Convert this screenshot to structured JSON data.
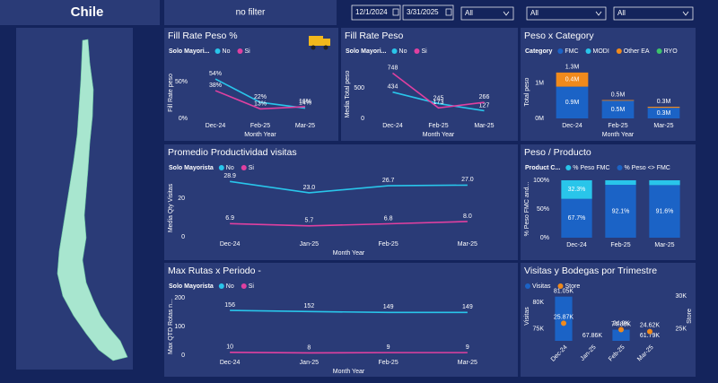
{
  "header": {
    "title": "Chile",
    "filter_text": "no filter",
    "start_date": "12/1/2024",
    "end_date": "3/31/2025",
    "dropdowns": [
      "All",
      "All",
      "All"
    ]
  },
  "chart_data": [
    {
      "type": "line",
      "title": "Fill Rate Peso %",
      "legend_title": "Solo Mayori...",
      "x_label": "Month Year",
      "y_label": "Fill Rate peso",
      "categories": [
        "Dec-24",
        "Feb-25",
        "Mar-25"
      ],
      "series": [
        {
          "name": "No",
          "color": "#29c5ea",
          "values": [
            54,
            22,
            14
          ],
          "value_labels": [
            "54%",
            "22%",
            "14%"
          ]
        },
        {
          "name": "Si",
          "color": "#e040a0",
          "values": [
            38,
            13,
            16
          ],
          "value_labels": [
            "38%",
            "13%",
            "16%"
          ]
        }
      ],
      "ylim": [
        0,
        70
      ],
      "yticks": [
        {
          "value": 0,
          "label": "0%"
        },
        {
          "value": 50,
          "label": "50%"
        }
      ]
    },
    {
      "type": "line",
      "title": "Fill Rate Peso",
      "legend_title": "Solo Mayori...",
      "x_label": "Month Year",
      "y_label": "Media Total peso",
      "categories": [
        "Dec-24",
        "Feb-25",
        "Mar-25"
      ],
      "series": [
        {
          "name": "No",
          "color": "#29c5ea",
          "values": [
            434,
            245,
            127
          ]
        },
        {
          "name": "Si",
          "color": "#e040a0",
          "values": [
            748,
            173,
            266
          ]
        }
      ],
      "ylim": [
        0,
        800
      ],
      "yticks": [
        0,
        500
      ]
    },
    {
      "type": "stacked_bar",
      "title": "Peso x Category",
      "legend_title": "Category",
      "x_label": "Month Year",
      "y_label": "Total peso",
      "categories": [
        "Dec-24",
        "Feb-25",
        "Mar-25"
      ],
      "series": [
        {
          "name": "FMC",
          "color": "#1b63c6",
          "values": [
            900000,
            500000,
            300000
          ],
          "value_labels": [
            "0.9M",
            "0.5M",
            "0.3M"
          ]
        },
        {
          "name": "MODI",
          "color": "#29c5ea",
          "values": [
            0,
            0,
            0
          ]
        },
        {
          "name": "Other EA",
          "color": "#f08a1c",
          "values": [
            400000,
            20000,
            30000
          ],
          "value_labels": [
            "0.4M",
            null,
            null
          ]
        },
        {
          "name": "RYO",
          "color": "#3cc36a",
          "values": [
            0,
            0,
            0
          ]
        }
      ],
      "total_labels": [
        "1.3M",
        "0.5M",
        "0.3M"
      ],
      "ylim": [
        0,
        1500000
      ],
      "yticks": [
        {
          "value": 0,
          "label": "0M"
        },
        {
          "value": 1000000,
          "label": "1M"
        }
      ]
    },
    {
      "type": "line",
      "title": "Promedio Productividad visitas",
      "legend_title": "Solo Mayorista",
      "x_label": "Month Year",
      "y_label": "Media Qty Visitas",
      "categories": [
        "Dec-24",
        "Jan-25",
        "Feb-25",
        "Mar-25"
      ],
      "series": [
        {
          "name": "No",
          "color": "#29c5ea",
          "values": [
            28.9,
            23.0,
            26.7,
            27.0
          ],
          "value_labels": [
            "28.9",
            "23.0",
            "26.7",
            "27.0"
          ]
        },
        {
          "name": "Si",
          "color": "#e040a0",
          "values": [
            6.9,
            5.7,
            6.8,
            8.0
          ],
          "value_labels": [
            "6.9",
            "5.7",
            "6.8",
            "8.0"
          ]
        }
      ],
      "ylim": [
        0,
        30
      ],
      "yticks": [
        0,
        20
      ]
    },
    {
      "type": "stacked_bar",
      "title": "Peso / Producto",
      "legend_title": "Product C...",
      "y_label": "% Peso FMC and...",
      "stack_reverse": true,
      "categories": [
        "Dec-24",
        "Feb-25",
        "Mar-25"
      ],
      "series": [
        {
          "name": "% Peso FMC",
          "color": "#29c5ea",
          "values": [
            32.3,
            7.9,
            8.4
          ],
          "value_labels": [
            "32.3%",
            null,
            null
          ]
        },
        {
          "name": "% Peso <> FMC",
          "color": "#1b63c6",
          "values": [
            67.7,
            92.1,
            91.6
          ],
          "value_labels": [
            "67.7%",
            "92.1%",
            "91.6%"
          ]
        }
      ],
      "ylim": [
        0,
        100
      ],
      "yticks": [
        {
          "value": 0,
          "label": "0%"
        },
        {
          "value": 50,
          "label": "50%"
        },
        {
          "value": 100,
          "label": "100%"
        }
      ]
    },
    {
      "type": "line",
      "title": "Max Rutas x Periodo -",
      "legend_title": "Solo Mayorista",
      "x_label": "Month Year",
      "y_label": "Max QTD Rotas n...",
      "categories": [
        "Dec-24",
        "Jan-25",
        "Feb-25",
        "Mar-25"
      ],
      "series": [
        {
          "name": "No",
          "color": "#29c5ea",
          "values": [
            156,
            152,
            149,
            149
          ]
        },
        {
          "name": "Si",
          "color": "#e040a0",
          "values": [
            10,
            8,
            9,
            9
          ]
        }
      ],
      "ylim": [
        0,
        200
      ],
      "yticks": [
        0,
        100,
        200
      ]
    },
    {
      "type": "combo",
      "title": "Visitas y Bodegas por Trimestre",
      "y_label": "Visitas",
      "y2_label": "Store",
      "categories": [
        "Dec-24",
        "Jan-25",
        "Feb-25",
        "Mar-25"
      ],
      "series": [
        {
          "name": "Visitas",
          "kind": "bar",
          "color": "#1b63c6",
          "values": [
            81050,
            67860,
            74880,
            61790
          ],
          "value_labels": [
            "81.05K",
            "67.86K",
            "74.88K",
            "61.79K"
          ]
        },
        {
          "name": "Store",
          "kind": "scatter",
          "axis": "y2",
          "color": "#f08a1c",
          "values": [
            25870,
            null,
            24900,
            24620
          ],
          "value_labels": [
            "25.87K",
            null,
            "24.9K",
            "24.62K"
          ]
        }
      ],
      "ylim": [
        72800,
        82000
      ],
      "yticks": [
        {
          "value": 75000,
          "label": "75K"
        },
        {
          "value": 80000,
          "label": "80K"
        }
      ],
      "y2lim": [
        23200,
        30700
      ],
      "y2ticks": [
        {
          "value": 25000,
          "label": "25K"
        },
        {
          "value": 30000,
          "label": "30K"
        }
      ]
    }
  ]
}
